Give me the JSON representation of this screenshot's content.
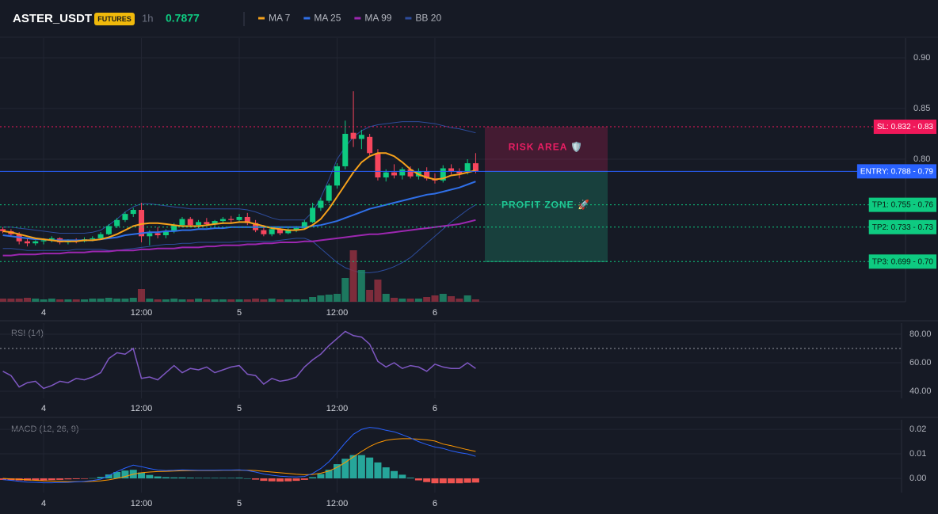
{
  "chart_data": [
    {
      "type": "candlestick",
      "title": "ASTER_USDT",
      "badge": "FUTURES",
      "interval": "1h",
      "last_price": 0.7877,
      "categories": [
        null,
        null,
        null,
        null,
        null,
        "4",
        null,
        null,
        null,
        null,
        null,
        null,
        null,
        null,
        null,
        null,
        null,
        "12:00",
        null,
        null,
        null,
        null,
        null,
        null,
        null,
        null,
        null,
        null,
        null,
        "5",
        null,
        null,
        null,
        null,
        null,
        null,
        null,
        null,
        null,
        null,
        null,
        "12:00",
        null,
        null,
        null,
        null,
        null,
        null,
        null,
        null,
        null,
        null,
        null,
        "6",
        null,
        null,
        null,
        null,
        null
      ],
      "open": [
        0.731,
        0.729,
        0.726,
        0.719,
        0.717,
        0.719,
        0.72,
        0.722,
        0.718,
        0.72,
        0.719,
        0.721,
        0.722,
        0.726,
        0.734,
        0.74,
        0.746,
        0.75,
        0.724,
        0.727,
        0.725,
        0.729,
        0.735,
        0.741,
        0.735,
        0.738,
        0.736,
        0.739,
        0.741,
        0.74,
        0.743,
        0.737,
        0.73,
        0.726,
        0.731,
        0.727,
        0.73,
        0.732,
        0.738,
        0.752,
        0.759,
        0.774,
        0.793,
        0.826,
        0.82,
        0.822,
        0.806,
        0.782,
        0.787,
        0.784,
        0.79,
        0.783,
        0.788,
        0.781,
        0.779,
        0.791,
        0.788,
        0.788,
        0.796
      ],
      "high": [
        0.733,
        0.731,
        0.728,
        0.722,
        0.72,
        0.722,
        0.724,
        0.723,
        0.721,
        0.722,
        0.723,
        0.724,
        0.728,
        0.736,
        0.742,
        0.748,
        0.752,
        0.757,
        0.73,
        0.733,
        0.731,
        0.737,
        0.743,
        0.743,
        0.74,
        0.742,
        0.74,
        0.743,
        0.744,
        0.746,
        0.747,
        0.74,
        0.735,
        0.732,
        0.733,
        0.732,
        0.734,
        0.74,
        0.757,
        0.762,
        0.776,
        0.796,
        0.838,
        0.867,
        0.829,
        0.825,
        0.81,
        0.79,
        0.795,
        0.792,
        0.793,
        0.791,
        0.792,
        0.786,
        0.794,
        0.795,
        0.791,
        0.8,
        0.806
      ],
      "low": [
        0.727,
        0.724,
        0.716,
        0.714,
        0.715,
        0.716,
        0.718,
        0.716,
        0.716,
        0.717,
        0.718,
        0.719,
        0.721,
        0.725,
        0.732,
        0.738,
        0.743,
        0.718,
        0.715,
        0.722,
        0.722,
        0.727,
        0.733,
        0.733,
        0.732,
        0.735,
        0.734,
        0.736,
        0.737,
        0.738,
        0.735,
        0.728,
        0.724,
        0.724,
        0.725,
        0.726,
        0.728,
        0.731,
        0.737,
        0.749,
        0.757,
        0.771,
        0.79,
        0.812,
        0.81,
        0.804,
        0.779,
        0.778,
        0.781,
        0.78,
        0.781,
        0.78,
        0.779,
        0.776,
        0.777,
        0.785,
        0.781,
        0.785,
        0.786
      ],
      "close": [
        0.729,
        0.726,
        0.719,
        0.717,
        0.719,
        0.72,
        0.722,
        0.718,
        0.72,
        0.719,
        0.721,
        0.722,
        0.726,
        0.734,
        0.74,
        0.746,
        0.75,
        0.724,
        0.727,
        0.725,
        0.729,
        0.735,
        0.741,
        0.735,
        0.738,
        0.736,
        0.739,
        0.741,
        0.74,
        0.743,
        0.737,
        0.73,
        0.726,
        0.731,
        0.727,
        0.73,
        0.732,
        0.738,
        0.752,
        0.759,
        0.774,
        0.793,
        0.825,
        0.82,
        0.824,
        0.806,
        0.782,
        0.787,
        0.784,
        0.79,
        0.783,
        0.788,
        0.781,
        0.779,
        0.791,
        0.788,
        0.786,
        0.796,
        0.788
      ],
      "volume": [
        4,
        4,
        4,
        5,
        4,
        3,
        4,
        3,
        3,
        3,
        3,
        4,
        4,
        5,
        4,
        4,
        5,
        16,
        4,
        3,
        3,
        4,
        3,
        3,
        4,
        3,
        3,
        3,
        3,
        3,
        3,
        4,
        3,
        4,
        3,
        3,
        3,
        3,
        6,
        8,
        9,
        10,
        30,
        65,
        40,
        15,
        28,
        10,
        5,
        4,
        4,
        4,
        6,
        8,
        10,
        7,
        4,
        8,
        3
      ],
      "up_color": "#0ecb81",
      "down_color": "#f6465d",
      "series": [
        {
          "name": "MA 7",
          "color": "#f7a21b",
          "values": [
            0.729,
            0.728,
            0.726,
            0.724,
            0.722,
            0.721,
            0.72,
            0.719,
            0.719,
            0.719,
            0.72,
            0.72,
            0.721,
            0.723,
            0.726,
            0.73,
            0.734,
            0.736,
            0.737,
            0.737,
            0.736,
            0.735,
            0.734,
            0.734,
            0.734,
            0.735,
            0.736,
            0.737,
            0.737,
            0.738,
            0.738,
            0.736,
            0.734,
            0.732,
            0.731,
            0.73,
            0.73,
            0.731,
            0.735,
            0.741,
            0.751,
            0.763,
            0.775,
            0.787,
            0.797,
            0.803,
            0.806,
            0.806,
            0.803,
            0.797,
            0.79,
            0.785,
            0.782,
            0.78,
            0.781,
            0.784,
            0.785,
            0.787,
            0.789
          ]
        },
        {
          "name": "MA 25",
          "color": "#2f6fe8",
          "values": [
            0.725,
            0.724,
            0.723,
            0.722,
            0.721,
            0.721,
            0.72,
            0.72,
            0.72,
            0.72,
            0.72,
            0.72,
            0.721,
            0.722,
            0.723,
            0.725,
            0.726,
            0.727,
            0.728,
            0.728,
            0.729,
            0.729,
            0.73,
            0.73,
            0.731,
            0.731,
            0.732,
            0.732,
            0.733,
            0.733,
            0.733,
            0.733,
            0.733,
            0.733,
            0.733,
            0.733,
            0.733,
            0.733,
            0.734,
            0.735,
            0.737,
            0.739,
            0.742,
            0.745,
            0.748,
            0.751,
            0.753,
            0.755,
            0.757,
            0.759,
            0.761,
            0.763,
            0.765,
            0.766,
            0.768,
            0.77,
            0.772,
            0.775,
            0.778
          ]
        },
        {
          "name": "MA 99",
          "color": "#9c27b0",
          "values": [
            0.705,
            0.705,
            0.706,
            0.706,
            0.706,
            0.707,
            0.707,
            0.707,
            0.708,
            0.708,
            0.708,
            0.709,
            0.709,
            0.709,
            0.71,
            0.71,
            0.71,
            0.711,
            0.711,
            0.712,
            0.712,
            0.712,
            0.713,
            0.713,
            0.713,
            0.714,
            0.714,
            0.715,
            0.715,
            0.715,
            0.716,
            0.716,
            0.717,
            0.717,
            0.718,
            0.718,
            0.718,
            0.719,
            0.719,
            0.72,
            0.721,
            0.722,
            0.723,
            0.724,
            0.725,
            0.726,
            0.726,
            0.727,
            0.728,
            0.729,
            0.73,
            0.731,
            0.732,
            0.733,
            0.734,
            0.735,
            0.736,
            0.738,
            0.74
          ]
        },
        {
          "name": "BB 20",
          "color": "#2d4c9c",
          "upper": [
            0.733,
            0.733,
            0.732,
            0.731,
            0.73,
            0.729,
            0.728,
            0.727,
            0.727,
            0.727,
            0.727,
            0.728,
            0.73,
            0.735,
            0.741,
            0.748,
            0.753,
            0.756,
            0.756,
            0.755,
            0.754,
            0.753,
            0.752,
            0.751,
            0.751,
            0.751,
            0.751,
            0.751,
            0.751,
            0.751,
            0.75,
            0.748,
            0.745,
            0.742,
            0.74,
            0.74,
            0.74,
            0.74,
            0.748,
            0.762,
            0.78,
            0.8,
            0.812,
            0.822,
            0.828,
            0.832,
            0.834,
            0.835,
            0.836,
            0.837,
            0.837,
            0.837,
            0.836,
            0.835,
            0.833,
            0.831,
            0.83,
            0.828,
            0.826
          ],
          "lower": [
            0.712,
            0.712,
            0.711,
            0.71,
            0.71,
            0.71,
            0.71,
            0.71,
            0.71,
            0.711,
            0.711,
            0.711,
            0.711,
            0.71,
            0.71,
            0.711,
            0.712,
            0.713,
            0.714,
            0.715,
            0.716,
            0.716,
            0.717,
            0.717,
            0.718,
            0.718,
            0.718,
            0.718,
            0.718,
            0.719,
            0.719,
            0.719,
            0.719,
            0.719,
            0.72,
            0.721,
            0.722,
            0.722,
            0.719,
            0.712,
            0.705,
            0.698,
            0.693,
            0.69,
            0.688,
            0.688,
            0.689,
            0.691,
            0.694,
            0.698,
            0.703,
            0.71,
            0.717,
            0.724,
            0.731,
            0.738,
            0.744,
            0.75,
            0.755
          ]
        }
      ],
      "ylim": [
        0.6594,
        0.9195
      ],
      "yticks": [
        {
          "value": 0.8,
          "label": "0.80"
        },
        0.85,
        {
          "value": 0.9,
          "label": "0.90"
        }
      ],
      "levels": [
        {
          "value": 0.832,
          "label": "SL: 0.832 - 0.83",
          "color": "#f0185a",
          "text_color": "#ffffff",
          "style": "dotted"
        },
        {
          "value": 0.788,
          "label": "ENTRY: 0.788 - 0.79",
          "color": "#2962ff",
          "text_color": "#ffffff",
          "style": "solid"
        },
        {
          "value": 0.755,
          "label": "TP1: 0.755 - 0.76",
          "color": "#0ecb81",
          "text_color": "#0b1a12",
          "style": "dotted"
        },
        {
          "value": 0.733,
          "label": "TP2: 0.733 - 0.73",
          "color": "#0ecb81",
          "text_color": "#0b1a12",
          "style": "dotted"
        },
        {
          "value": 0.699,
          "label": "TP3: 0.699 - 0.70",
          "color": "#0ecb81",
          "text_color": "#0b1a12",
          "style": "dotted"
        }
      ],
      "zones": [
        {
          "label": "RISK AREA 🛡️",
          "from": 0.788,
          "to": 0.832,
          "color": "#e91e63"
        },
        {
          "label": "PROFIT ZONE 🚀",
          "from": 0.699,
          "to": 0.788,
          "color": "#20c997"
        }
      ]
    },
    {
      "type": "line",
      "title": "RSI (14)",
      "color": "#7e57c2",
      "values": [
        54,
        51,
        43,
        46,
        47,
        42,
        44,
        47,
        46,
        49,
        48,
        50,
        53,
        63,
        67,
        66,
        70,
        49,
        50,
        48,
        53,
        58,
        53,
        56,
        55,
        57,
        53,
        55,
        57,
        58,
        52,
        51,
        45,
        49,
        47,
        48,
        50,
        57,
        62,
        66,
        72,
        77,
        82,
        79,
        78,
        73,
        61,
        57,
        60,
        56,
        58,
        57,
        54,
        59,
        57,
        56,
        56,
        60,
        56
      ],
      "overbought": 70,
      "ylim": [
        35,
        87.8
      ],
      "yticks": [
        {
          "value": 40,
          "label": "40.00"
        },
        {
          "value": 60,
          "label": "60.00"
        },
        {
          "value": 80,
          "label": "80.00"
        }
      ]
    },
    {
      "type": "macd",
      "title": "MACD (12, 26, 9)",
      "macd": [
        -0.0005,
        -0.0008,
        -0.0012,
        -0.0015,
        -0.0016,
        -0.0018,
        -0.0018,
        -0.0017,
        -0.0016,
        -0.0014,
        -0.0012,
        -0.0009,
        -0.0003,
        0.0012,
        0.0028,
        0.0042,
        0.0054,
        0.0048,
        0.004,
        0.0034,
        0.0032,
        0.0033,
        0.0035,
        0.0034,
        0.0033,
        0.0033,
        0.0033,
        0.0034,
        0.0034,
        0.0035,
        0.0032,
        0.0026,
        0.0018,
        0.0013,
        0.0009,
        0.0007,
        0.0006,
        0.0008,
        0.002,
        0.004,
        0.0068,
        0.0105,
        0.0145,
        0.018,
        0.02,
        0.0208,
        0.0204,
        0.0196,
        0.019,
        0.0178,
        0.0165,
        0.015,
        0.0138,
        0.0128,
        0.0122,
        0.0112,
        0.0105,
        0.01,
        0.009
      ],
      "signal": [
        0,
        -0.0002,
        -0.0004,
        -0.0006,
        -0.0008,
        -0.001,
        -0.0011,
        -0.0012,
        -0.0013,
        -0.0013,
        -0.0013,
        -0.0012,
        -0.001,
        -0.0006,
        0,
        0.0008,
        0.0017,
        0.0023,
        0.0026,
        0.0028,
        0.0029,
        0.003,
        0.0031,
        0.0032,
        0.0032,
        0.0032,
        0.0032,
        0.0033,
        0.0033,
        0.0033,
        0.0033,
        0.0032,
        0.0029,
        0.0026,
        0.0023,
        0.002,
        0.0017,
        0.0015,
        0.0016,
        0.0021,
        0.003,
        0.0045,
        0.0065,
        0.0088,
        0.011,
        0.013,
        0.0145,
        0.0155,
        0.016,
        0.0162,
        0.0162,
        0.016,
        0.0157,
        0.0152,
        0.014,
        0.0133,
        0.0125,
        0.0117,
        0.011
      ],
      "histogram": [
        -0.0006,
        -0.0007,
        -0.0008,
        -0.0009,
        -0.0008,
        -0.0008,
        -0.0007,
        -0.0006,
        -0.0004,
        -0.0003,
        -0.0002,
        0.0001,
        0.0006,
        0.0016,
        0.0026,
        0.0032,
        0.0035,
        0.0024,
        0.0014,
        0.0008,
        0.0005,
        0.0004,
        0.0004,
        0.0003,
        0.0002,
        0.0002,
        0.0002,
        0.0002,
        0.0002,
        0.0003,
        0,
        -0.0005,
        -0.001,
        -0.0012,
        -0.0013,
        -0.0012,
        -0.001,
        -0.0006,
        0.0005,
        0.0018,
        0.0035,
        0.0058,
        0.008,
        0.0095,
        0.0095,
        0.0085,
        0.0065,
        0.0045,
        0.003,
        0.0015,
        0.0003,
        -0.0008,
        -0.0015,
        -0.002,
        -0.002,
        -0.002,
        -0.002,
        -0.0018,
        -0.0017
      ],
      "macd_color": "#2962ff",
      "signal_color": "#ff9800",
      "positive_color": "#26a69a",
      "negative_color": "#ef5350",
      "ylim": [
        -0.0058,
        0.0239
      ],
      "yticks": [
        {
          "value": 0,
          "label": "0.00"
        },
        0.01,
        0.02
      ]
    }
  ]
}
